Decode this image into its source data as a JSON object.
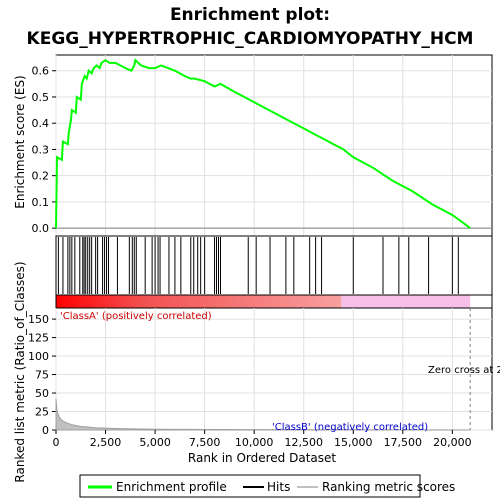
{
  "chart_data": {
    "type": "line",
    "title": "Enrichment plot:\nKEGG_HYPERTROPHIC_CARDIOMYOPATHY_HCM",
    "title_lines": [
      "Enrichment plot:",
      "KEGG_HYPERTROPHIC_CARDIOMYOPATHY_HCM"
    ],
    "xlabel": "Rank in Ordered Dataset",
    "es_panel": {
      "ylabel": "Enrichment score (ES)",
      "ylim": [
        -0.03,
        0.66
      ],
      "yticks": [
        "0.0",
        "0.1",
        "0.2",
        "0.3",
        "0.4",
        "0.5",
        "0.6"
      ],
      "ytick_values": [
        0.0,
        0.1,
        0.2,
        0.3,
        0.4,
        0.5,
        0.6
      ],
      "series": [
        {
          "name": "Enrichment profile",
          "color": "#00ff00",
          "points": [
            [
              0,
              0.0
            ],
            [
              50,
              0.27
            ],
            [
              300,
              0.26
            ],
            [
              350,
              0.33
            ],
            [
              600,
              0.32
            ],
            [
              650,
              0.37
            ],
            [
              750,
              0.41
            ],
            [
              800,
              0.45
            ],
            [
              1000,
              0.44
            ],
            [
              1050,
              0.5
            ],
            [
              1250,
              0.49
            ],
            [
              1300,
              0.55
            ],
            [
              1450,
              0.58
            ],
            [
              1550,
              0.57
            ],
            [
              1650,
              0.6
            ],
            [
              1800,
              0.59
            ],
            [
              1900,
              0.61
            ],
            [
              2050,
              0.62
            ],
            [
              2200,
              0.61
            ],
            [
              2300,
              0.63
            ],
            [
              2500,
              0.64
            ],
            [
              2700,
              0.63
            ],
            [
              3000,
              0.63
            ],
            [
              3500,
              0.61
            ],
            [
              3800,
              0.6
            ],
            [
              3950,
              0.62
            ],
            [
              4000,
              0.64
            ],
            [
              4300,
              0.62
            ],
            [
              4700,
              0.61
            ],
            [
              5000,
              0.61
            ],
            [
              5300,
              0.62
            ],
            [
              6000,
              0.6
            ],
            [
              6500,
              0.58
            ],
            [
              6800,
              0.57
            ],
            [
              7000,
              0.57
            ],
            [
              7500,
              0.56
            ],
            [
              8000,
              0.54
            ],
            [
              8300,
              0.55
            ],
            [
              9000,
              0.52
            ],
            [
              9500,
              0.5
            ],
            [
              10000,
              0.48
            ],
            [
              10500,
              0.46
            ],
            [
              11000,
              0.44
            ],
            [
              11500,
              0.42
            ],
            [
              12000,
              0.4
            ],
            [
              12500,
              0.38
            ],
            [
              13000,
              0.36
            ],
            [
              13500,
              0.34
            ],
            [
              14000,
              0.32
            ],
            [
              14500,
              0.3
            ],
            [
              15000,
              0.27
            ],
            [
              16000,
              0.23
            ],
            [
              17000,
              0.18
            ],
            [
              18000,
              0.14
            ],
            [
              19000,
              0.09
            ],
            [
              20000,
              0.05
            ],
            [
              20900,
              0.0
            ]
          ]
        }
      ]
    },
    "hits": [
      120,
      350,
      600,
      700,
      800,
      950,
      1200,
      1350,
      1420,
      1500,
      1600,
      1700,
      1800,
      2000,
      2100,
      2350,
      2450,
      2550,
      2650,
      3100,
      3700,
      3850,
      3950,
      4050,
      4500,
      4850,
      5000,
      5150,
      5250,
      5700,
      6000,
      6300,
      6800,
      6950,
      7150,
      7300,
      7500,
      8000,
      8100,
      8200,
      8300,
      9700,
      10100,
      10800,
      11600,
      12000,
      12800,
      13100,
      13400,
      15000,
      16500,
      17300,
      17800,
      18800,
      20000,
      20300
    ],
    "color_bar": {
      "positive_color": "#ff0000",
      "negative_color": "#0000ff",
      "split_label_left": "'ClassA' (positively correlated)",
      "split_label_right": "'ClassB' (negatively correlated)",
      "positive_until": 14400,
      "end": 20900
    },
    "metric_panel": {
      "ylabel": "Ranked list metric (Ratio_of_Classes)",
      "ylim": [
        0,
        165
      ],
      "yticks": [
        "0",
        "25",
        "50",
        "75",
        "100",
        "125",
        "150"
      ],
      "ytick_values": [
        0,
        25,
        50,
        75,
        100,
        125,
        150
      ],
      "zero_cross_label": "Zero cross at 2",
      "zero_cross_x": 20900,
      "metric_curve": [
        [
          0,
          42
        ],
        [
          50,
          26
        ],
        [
          150,
          18
        ],
        [
          300,
          13
        ],
        [
          500,
          10
        ],
        [
          800,
          7
        ],
        [
          1200,
          5
        ],
        [
          2000,
          3
        ],
        [
          3000,
          2
        ],
        [
          5000,
          1
        ],
        [
          10000,
          0.6
        ],
        [
          15000,
          0.3
        ],
        [
          20000,
          0.1
        ],
        [
          20900,
          0
        ]
      ]
    },
    "x_axis": {
      "xlim": [
        0,
        22000
      ],
      "xticks": [
        "0",
        "2,500",
        "5,000",
        "7,500",
        "10,000",
        "12,500",
        "15,000",
        "17,500",
        "20,000"
      ],
      "xtick_values": [
        0,
        2500,
        5000,
        7500,
        10000,
        12500,
        15000,
        17500,
        20000
      ]
    },
    "legend": {
      "placement": "bottom",
      "entries": [
        {
          "label": "Enrichment profile",
          "color": "#00ff00"
        },
        {
          "label": "Hits",
          "color": "#000000"
        },
        {
          "label": "Ranking metric scores",
          "color": "#c0c0c0"
        }
      ]
    },
    "grid": true
  }
}
